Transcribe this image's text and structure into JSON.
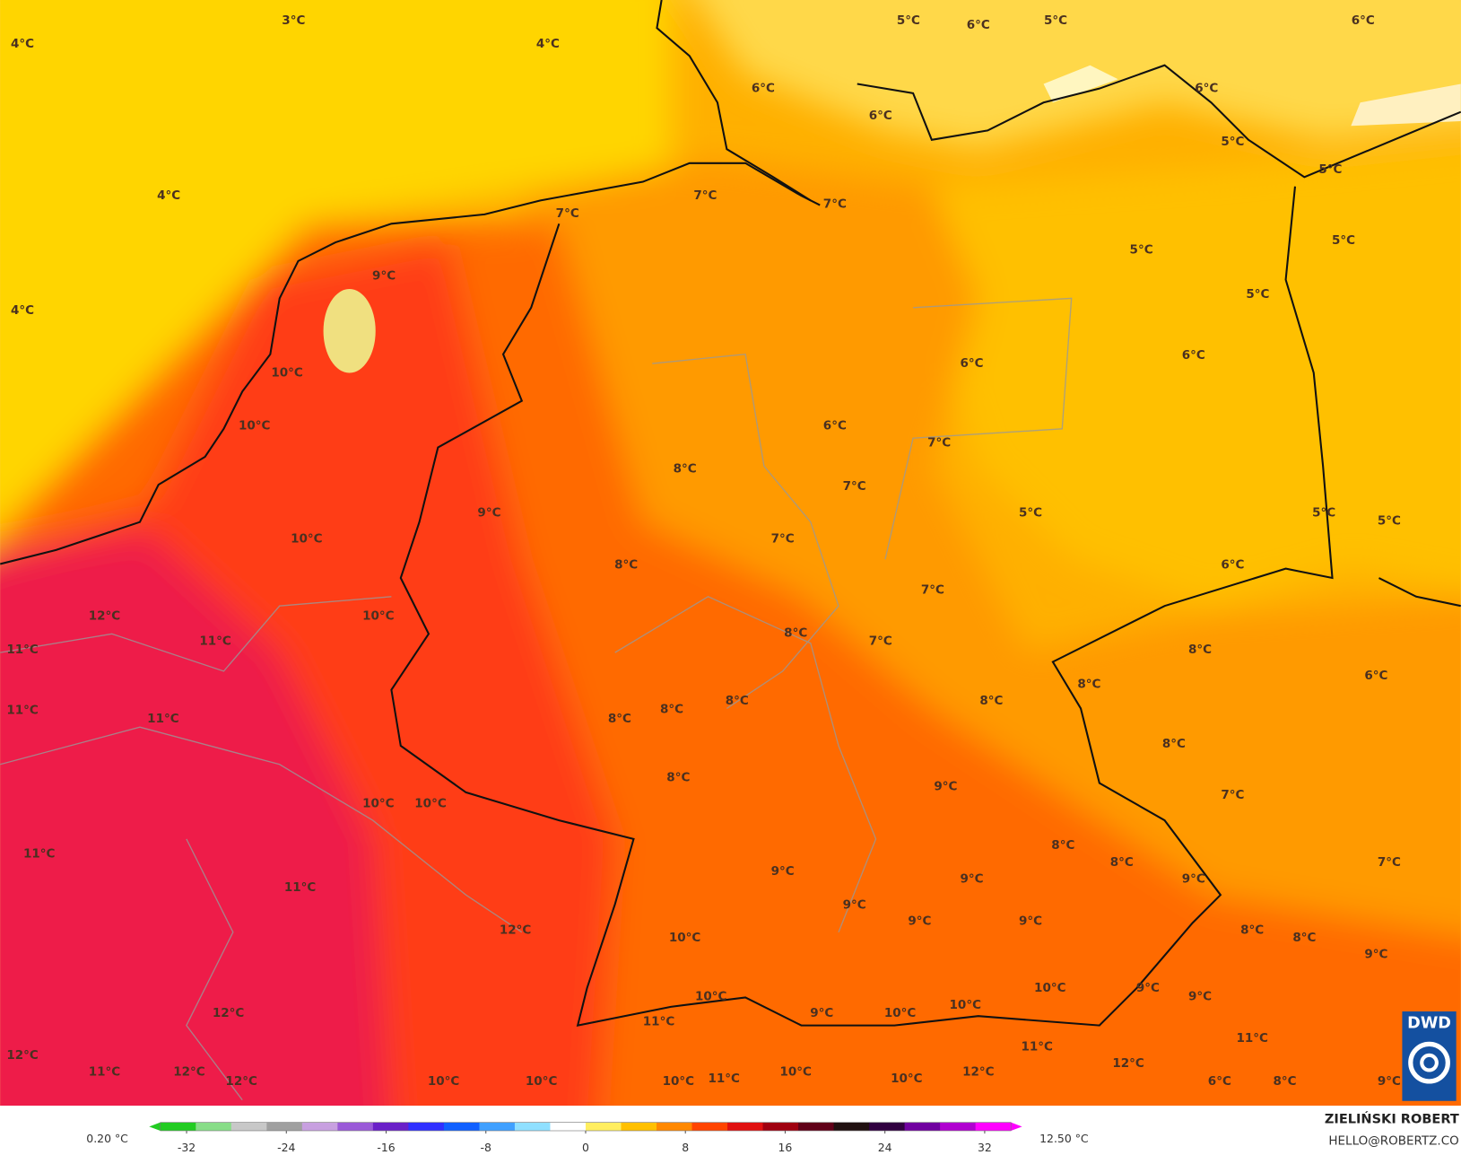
{
  "map": {
    "labels": [
      "3°C",
      "4°C",
      "4°C",
      "5°C",
      "6°C",
      "5°C",
      "6°C",
      "6°C",
      "6°C",
      "6°C",
      "5°C",
      "5°C",
      "4°C",
      "7°C",
      "7°C",
      "7°C",
      "5°C",
      "5°C",
      "9°C",
      "5°C",
      "4°C",
      "6°C",
      "6°C",
      "10°C",
      "10°C",
      "6°C",
      "7°C",
      "8°C",
      "7°C",
      "9°C",
      "5°C",
      "5°C",
      "5°C",
      "10°C",
      "7°C",
      "8°C",
      "6°C",
      "7°C",
      "10°C",
      "12°C",
      "11°C",
      "8°C",
      "7°C",
      "11°C",
      "8°C",
      "6°C",
      "8°C",
      "8°C",
      "8°C",
      "8°C",
      "8°C",
      "11°C",
      "11°C",
      "8°C",
      "8°C",
      "9°C",
      "7°C",
      "10°C",
      "10°C",
      "11°C",
      "8°C",
      "8°C",
      "9°C",
      "9°C",
      "9°C",
      "7°C",
      "11°C",
      "9°C",
      "9°C",
      "9°C",
      "12°C",
      "8°C",
      "8°C",
      "9°C",
      "10°C",
      "10°C",
      "9°C",
      "9°C",
      "10°C",
      "9°C",
      "10°C",
      "10°C",
      "12°C",
      "11°C",
      "11°C",
      "11°C",
      "12°C",
      "12°C",
      "11°C",
      "12°C",
      "12°C",
      "10°C",
      "10°C",
      "10°C",
      "11°C",
      "10°C",
      "10°C",
      "12°C",
      "6°C",
      "8°C",
      "9°C"
    ],
    "logo": "DWD"
  },
  "colorbar": {
    "min_label": "0.20 °C",
    "max_label": "12.50 °C",
    "range": [
      -35,
      35
    ],
    "ticks": [
      -32,
      -24,
      -16,
      -8,
      0,
      8,
      16,
      24,
      32
    ],
    "colors": [
      "#22cc22",
      "#88dd88",
      "#c8c8c8",
      "#a0a0a0",
      "#c8a0e0",
      "#9a5ad8",
      "#6a20c8",
      "#3030ff",
      "#1060ff",
      "#40a0ff",
      "#90e0ff",
      "#ffffff",
      "#ffee60",
      "#ffc000",
      "#ff8800",
      "#ff4400",
      "#e01010",
      "#a00010",
      "#600018",
      "#201010",
      "#300040",
      "#7000a0",
      "#b000d0",
      "#ff00ff"
    ]
  },
  "credits": {
    "name": "ZIELIŃSKI ROBERT",
    "contact": "HELLO@ROBERTZ.CO"
  }
}
